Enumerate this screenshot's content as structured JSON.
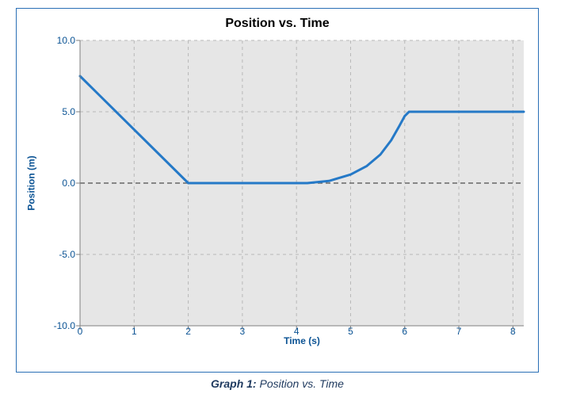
{
  "chart": {
    "type": "line",
    "title": "Position vs. Time",
    "title_fontsize": 16,
    "xlabel": "Time (s)",
    "ylabel": "Position (m)",
    "label_fontsize": 12,
    "label_color": "#0b5394",
    "xlim": [
      0,
      8.2
    ],
    "ylim": [
      -10,
      10
    ],
    "xtick_step": 1,
    "xtick_labels": [
      "0",
      "1",
      "2",
      "3",
      "4",
      "5",
      "6",
      "7",
      "8"
    ],
    "ytick_step": 5,
    "ytick_labels": [
      "-10.0",
      "-5.0",
      "0.0",
      "5.0",
      "10.0"
    ],
    "background_color": "#e6e6e6",
    "grid_color": "#b8b8b8",
    "zero_line_color": "#666666",
    "zero_line_dash": "6,4",
    "axis_color": "#7f7f7f",
    "line_color": "#2579c7",
    "line_width": 3,
    "border_color": "#2a6fb5",
    "series": [
      {
        "x": 0.0,
        "y": 7.5
      },
      {
        "x": 2.0,
        "y": 0.0
      },
      {
        "x": 4.2,
        "y": 0.0
      },
      {
        "x": 4.6,
        "y": 0.15
      },
      {
        "x": 5.0,
        "y": 0.6
      },
      {
        "x": 5.3,
        "y": 1.2
      },
      {
        "x": 5.55,
        "y": 2.0
      },
      {
        "x": 5.75,
        "y": 3.0
      },
      {
        "x": 5.9,
        "y": 4.0
      },
      {
        "x": 6.0,
        "y": 4.7
      },
      {
        "x": 6.08,
        "y": 5.0
      },
      {
        "x": 8.2,
        "y": 5.0
      }
    ]
  },
  "caption": {
    "label": "Graph 1:",
    "text": "Position vs. Time"
  }
}
